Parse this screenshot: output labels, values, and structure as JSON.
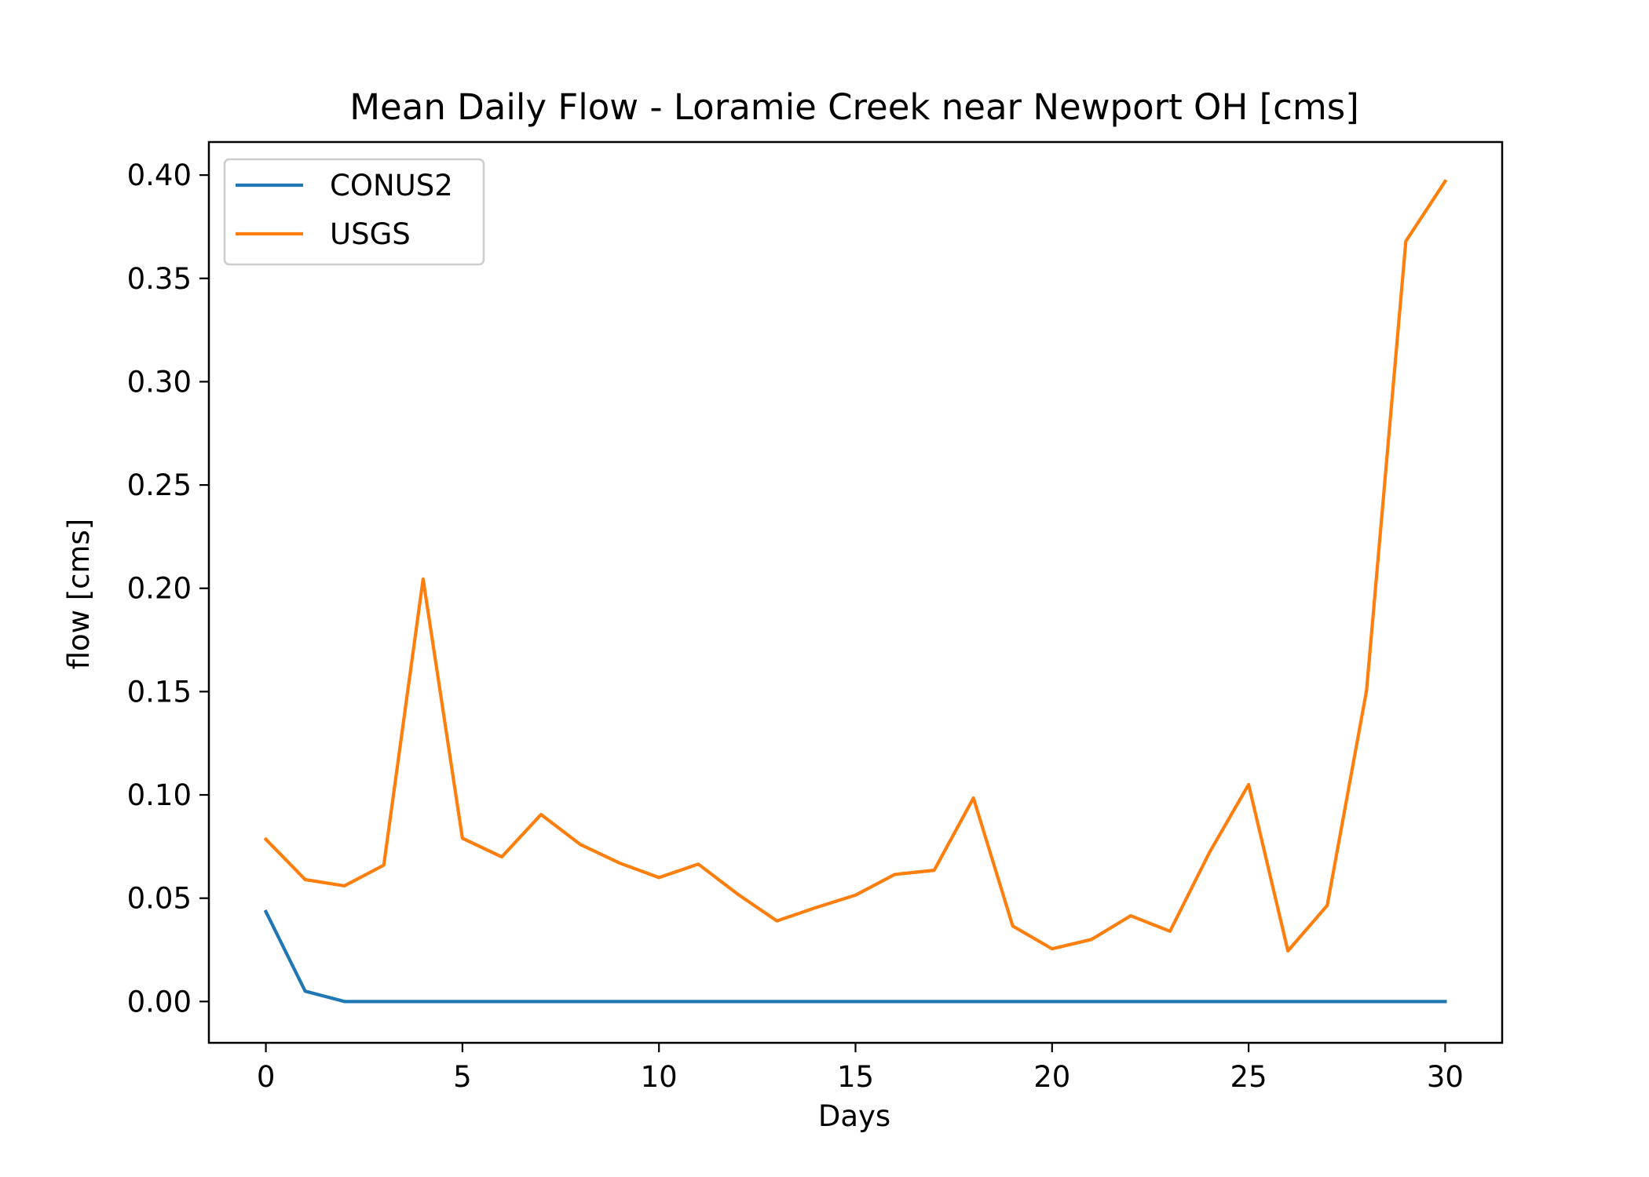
{
  "chart_data": {
    "type": "line",
    "title": "Mean Daily Flow - Loramie Creek near Newport OH [cms]",
    "xlabel": "Days",
    "ylabel": "flow [cms]",
    "xlim": [
      -1.45,
      31.45
    ],
    "ylim": [
      -0.02,
      0.416
    ],
    "xticks": [
      0,
      5,
      10,
      15,
      20,
      25,
      30
    ],
    "yticks": [
      0.0,
      0.05,
      0.1,
      0.15,
      0.2,
      0.25,
      0.3,
      0.35,
      0.4
    ],
    "ytick_labels": [
      "0.00",
      "0.05",
      "0.10",
      "0.15",
      "0.20",
      "0.25",
      "0.30",
      "0.35",
      "0.40"
    ],
    "xtick_labels": [
      "0",
      "5",
      "10",
      "15",
      "20",
      "25",
      "30"
    ],
    "grid": false,
    "legend_position": "upper-left",
    "x": [
      0,
      1,
      2,
      3,
      4,
      5,
      6,
      7,
      8,
      9,
      10,
      11,
      12,
      13,
      14,
      15,
      16,
      17,
      18,
      19,
      20,
      21,
      22,
      23,
      24,
      25,
      26,
      27,
      28,
      29,
      30
    ],
    "series": [
      {
        "name": "CONUS2",
        "color": "#1f77b4",
        "values": [
          0.0435,
          0.005,
          0,
          0,
          0,
          0,
          0,
          0,
          0,
          0,
          0,
          0,
          0,
          0,
          0,
          0,
          0,
          0,
          0,
          0,
          0,
          0,
          0,
          0,
          0,
          0,
          0,
          0,
          0,
          0,
          0
        ]
      },
      {
        "name": "USGS",
        "color": "#ff7f0e",
        "values": [
          0.0785,
          0.059,
          0.056,
          0.066,
          0.2045,
          0.079,
          0.07,
          0.0905,
          0.076,
          0.067,
          0.06,
          0.0665,
          0.052,
          0.039,
          0.0455,
          0.0515,
          0.0615,
          0.0635,
          0.0985,
          0.0365,
          0.0255,
          0.03,
          0.0415,
          0.034,
          0.072,
          0.105,
          0.0245,
          0.0465,
          0.1505,
          0.368,
          0.397
        ]
      }
    ]
  }
}
